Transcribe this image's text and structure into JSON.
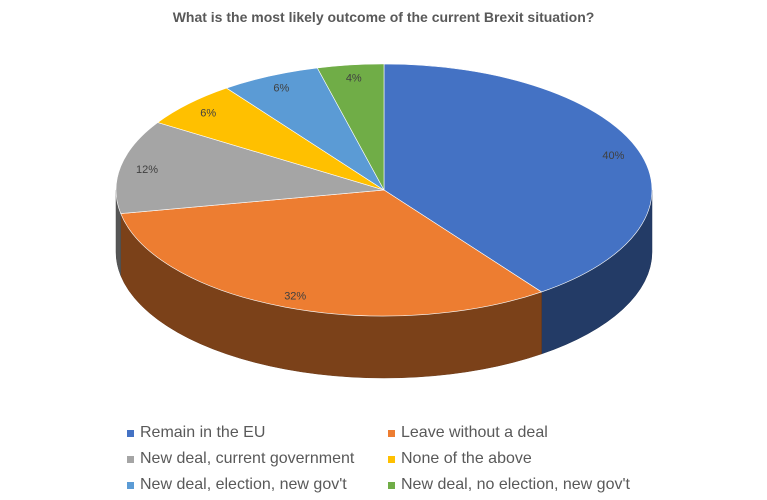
{
  "chart_data": {
    "type": "pie",
    "title": "What is the most likely outcome of the current Brexit situation?",
    "slices": [
      {
        "label": "Remain in the EU",
        "value": 40,
        "data_label": "40%",
        "color": "#4472C4"
      },
      {
        "label": "Leave without a deal",
        "value": 32,
        "data_label": "32%",
        "color": "#ED7D31"
      },
      {
        "label": "New deal, current government",
        "value": 12,
        "data_label": "12%",
        "color": "#A5A5A5"
      },
      {
        "label": "None of the above",
        "value": 6,
        "data_label": "6%",
        "color": "#FFC000"
      },
      {
        "label": "New deal, election, new gov't",
        "value": 6,
        "data_label": "6%",
        "color": "#5B9BD5"
      },
      {
        "label": "New deal, no election, new gov't",
        "value": 4,
        "data_label": "4%",
        "color": "#70AD47"
      }
    ],
    "legend_position": "bottom",
    "style": "3d"
  }
}
